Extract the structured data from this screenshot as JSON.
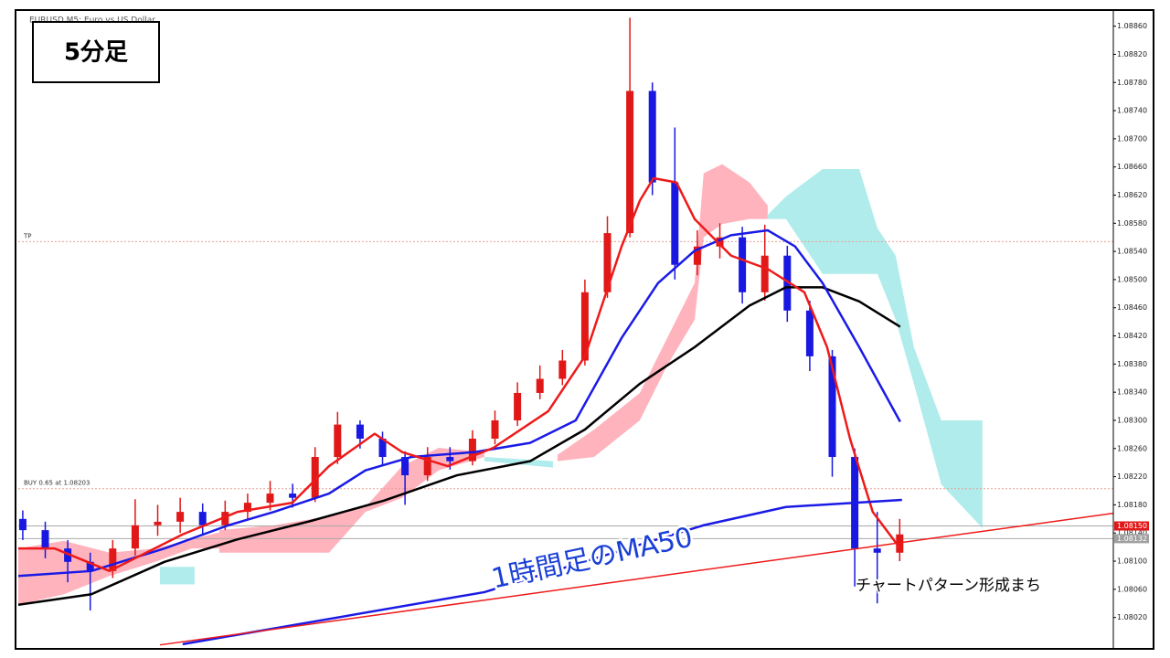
{
  "chart_data": {
    "type": "candlestick",
    "title": "EURUSD,M5:  Euro vs US Dollar",
    "label_box": "5分足",
    "annotations": [
      "1時間足のMA50",
      "チャートパターン形成まち"
    ],
    "xlim": [
      -0.2,
      48.5
    ],
    "ylim": [
      1.07978,
      1.08879
    ],
    "yticks": [
      {
        "value": 1.0802,
        "label": "1.08020"
      },
      {
        "value": 1.0806,
        "label": "1.08060"
      },
      {
        "value": 1.081,
        "label": "1.08100"
      },
      {
        "value": 1.0814,
        "label": "1.08140"
      },
      {
        "value": 1.0818,
        "label": "1.08180"
      },
      {
        "value": 1.0822,
        "label": "1.08220"
      },
      {
        "value": 1.0826,
        "label": "1.08260"
      },
      {
        "value": 1.083,
        "label": "1.08300"
      },
      {
        "value": 1.0834,
        "label": "1.08340"
      },
      {
        "value": 1.0838,
        "label": "1.08380"
      },
      {
        "value": 1.0842,
        "label": "1.08420"
      },
      {
        "value": 1.0846,
        "label": "1.08460"
      },
      {
        "value": 1.085,
        "label": "1.08500"
      },
      {
        "value": 1.0854,
        "label": "1.08540"
      },
      {
        "value": 1.0858,
        "label": "1.08580"
      },
      {
        "value": 1.0862,
        "label": "1.08620"
      },
      {
        "value": 1.0866,
        "label": "1.08660"
      },
      {
        "value": 1.087,
        "label": "1.08700"
      },
      {
        "value": 1.0874,
        "label": "1.08740"
      },
      {
        "value": 1.0878,
        "label": "1.08780"
      },
      {
        "value": 1.0882,
        "label": "1.08820"
      },
      {
        "value": 1.0886,
        "label": "1.08860"
      }
    ],
    "up_color": "#e01818",
    "down_color": "#1818e0",
    "open": [
      1.0816,
      1.08144,
      1.08118,
      1.08099,
      1.08086,
      1.08118,
      1.08151,
      1.08156,
      1.0817,
      1.08151,
      1.0817,
      1.08183,
      1.08196,
      1.0819,
      1.08248,
      1.08294,
      1.08274,
      1.08248,
      1.08222,
      1.08248,
      1.08242,
      1.08274,
      1.083,
      1.08339,
      1.08359,
      1.08385,
      1.08482,
      1.08566,
      1.08768,
      1.08638,
      1.08521,
      1.08547,
      1.0856,
      1.08482,
      1.08534,
      1.08456,
      1.08391,
      1.08248,
      1.08118,
      1.08112
    ],
    "high": [
      1.08172,
      1.08156,
      1.0813,
      1.08112,
      1.0813,
      1.08188,
      1.0818,
      1.0819,
      1.08182,
      1.08186,
      1.08196,
      1.08214,
      1.0821,
      1.08262,
      1.08312,
      1.083,
      1.08284,
      1.08256,
      1.08262,
      1.08262,
      1.08286,
      1.08314,
      1.08354,
      1.08378,
      1.084,
      1.085,
      1.0859,
      1.08872,
      1.0878,
      1.08716,
      1.0857,
      1.0858,
      1.08575,
      1.08578,
      1.08548,
      1.0847,
      1.084,
      1.0826,
      1.0817,
      1.0816
    ],
    "low": [
      1.0813,
      1.08104,
      1.0807,
      1.0803,
      1.08076,
      1.08108,
      1.08136,
      1.0814,
      1.08136,
      1.08144,
      1.0816,
      1.08172,
      1.08176,
      1.08184,
      1.08238,
      1.0826,
      1.08236,
      1.0818,
      1.08214,
      1.0823,
      1.08236,
      1.08266,
      1.08292,
      1.0833,
      1.0835,
      1.08378,
      1.08474,
      1.0856,
      1.0862,
      1.085,
      1.08506,
      1.0853,
      1.08466,
      1.0847,
      1.0844,
      1.0837,
      1.0822,
      1.08064,
      1.0804,
      1.081
    ],
    "close": [
      1.08144,
      1.08118,
      1.08099,
      1.08086,
      1.08118,
      1.08151,
      1.08156,
      1.0817,
      1.08151,
      1.0817,
      1.08183,
      1.08196,
      1.0819,
      1.08248,
      1.08294,
      1.08274,
      1.08248,
      1.08222,
      1.08248,
      1.08242,
      1.08274,
      1.083,
      1.08339,
      1.08359,
      1.08385,
      1.08482,
      1.08566,
      1.08768,
      1.08638,
      1.08521,
      1.08547,
      1.0856,
      1.08482,
      1.08534,
      1.08456,
      1.08391,
      1.08248,
      1.08118,
      1.08112,
      1.08138
    ],
    "clouds": [
      {
        "color": "#ffb3bd",
        "x": [
          -0.2,
          1.83,
          3.86,
          5.89,
          7.52,
          9.15
        ],
        "upper": [
          1.08118,
          1.08129,
          1.08112,
          1.08118,
          1.08131,
          1.08144
        ],
        "lower": [
          1.08038,
          1.08053,
          1.08079,
          1.08099,
          1.08118,
          1.08118
        ]
      },
      {
        "color": "#ffb3bd",
        "x": [
          8.74,
          11.18,
          13.62,
          15.24,
          16.87,
          18.5,
          20.53
        ],
        "upper": [
          1.08144,
          1.08151,
          1.08164,
          1.08177,
          1.08235,
          1.08261,
          1.08255
        ],
        "lower": [
          1.08112,
          1.08112,
          1.08112,
          1.0817,
          1.0819,
          1.08229,
          1.08248
        ]
      },
      {
        "color": "#b0ecec",
        "x": [
          6.1,
          7.64
        ],
        "upper": [
          1.08092,
          1.08092
        ],
        "lower": [
          1.08067,
          1.08067
        ]
      },
      {
        "color": "#b0ecec",
        "x": [
          20.53,
          23.58
        ],
        "upper": [
          1.08248,
          1.08242
        ],
        "lower": [
          1.08242,
          1.08233
        ]
      },
      {
        "color": "#ffb3bd",
        "x": [
          23.78,
          25.41,
          27.44,
          28.66,
          29.88,
          30.28,
          31.1,
          32.32,
          33.13
        ],
        "upper": [
          1.08251,
          1.08287,
          1.08339,
          1.08417,
          1.08495,
          1.08651,
          1.08664,
          1.08638,
          1.08605
        ],
        "lower": [
          1.08242,
          1.08248,
          1.083,
          1.08378,
          1.08443,
          1.0856,
          1.08579,
          1.08586,
          1.08586
        ]
      },
      {
        "color": "#b0ecec",
        "x": [
          33.13,
          33.94,
          35.57,
          37.2,
          38.01,
          38.82,
          39.63,
          40.85,
          42.68
        ],
        "upper": [
          1.08592,
          1.08618,
          1.08657,
          1.08657,
          1.08573,
          1.08534,
          1.08404,
          1.083,
          1.083
        ],
        "lower": [
          1.08586,
          1.08586,
          1.08508,
          1.08508,
          1.08508,
          1.08443,
          1.08352,
          1.08209,
          1.08147
        ]
      }
    ],
    "price_lines": [
      {
        "value": 1.08554,
        "label": "TP",
        "color": "#e8a090"
      },
      {
        "value": 1.08203,
        "label": "BUY 0.65 at 1.08203",
        "color": "#e8a090"
      }
    ],
    "price_tags": [
      {
        "value": 1.0815,
        "label": "1.08150",
        "color": "#e01818"
      },
      {
        "value": 1.08132,
        "label": "1.08132",
        "color": "#a0a0a0"
      }
    ],
    "lines": [
      {
        "color": "#000000",
        "width": 2.5,
        "x": [
          -0.2,
          3.05,
          6.3,
          9.55,
          12.8,
          16.06,
          19.31,
          22.56,
          25.0,
          27.44,
          29.88,
          32.32,
          33.94,
          35.57,
          37.2,
          39.02
        ],
        "values": [
          1.08038,
          1.08053,
          1.08099,
          1.08131,
          1.08157,
          1.08186,
          1.08222,
          1.08242,
          1.08287,
          1.08352,
          1.08404,
          1.08463,
          1.08489,
          1.08489,
          1.08469,
          1.08433
        ]
      },
      {
        "color": "#1a1ae6",
        "width": 2.5,
        "x": [
          -0.2,
          3.05,
          6.3,
          9.15,
          11.18,
          13.62,
          15.24,
          17.28,
          20.12,
          22.56,
          24.59,
          26.63,
          28.25,
          29.88,
          31.5,
          33.13,
          34.35,
          35.57,
          37.2,
          39.02
        ],
        "values": [
          1.08079,
          1.08086,
          1.08118,
          1.08151,
          1.0817,
          1.08196,
          1.08229,
          1.08248,
          1.08255,
          1.08268,
          1.083,
          1.08417,
          1.08495,
          1.08541,
          1.08563,
          1.0857,
          1.08547,
          1.08495,
          1.08404,
          1.08298
        ]
      },
      {
        "color": "#ee1a1a",
        "width": 2.5,
        "x": [
          -0.2,
          1.42,
          3.86,
          7.11,
          9.55,
          11.99,
          13.62,
          15.65,
          16.87,
          18.9,
          20.93,
          23.37,
          25.0,
          26.63,
          27.44,
          28.05,
          29.07,
          29.88,
          31.5,
          33.13,
          34.76,
          35.77,
          36.79,
          37.8,
          39.02
        ],
        "values": [
          1.08118,
          1.08118,
          1.08086,
          1.08138,
          1.0817,
          1.08183,
          1.08235,
          1.08281,
          1.08255,
          1.08235,
          1.08261,
          1.08313,
          1.08391,
          1.08547,
          1.08612,
          1.08644,
          1.08638,
          1.08586,
          1.08534,
          1.08515,
          1.08482,
          1.08404,
          1.08274,
          1.0817,
          1.08118
        ]
      },
      {
        "color": "#1a1ae6",
        "width": 2.5,
        "x": [
          7.11,
          20.53,
          30.28,
          33.94,
          39.1
        ],
        "values": [
          1.07982,
          1.08056,
          1.08151,
          1.08177,
          1.08187
        ]
      },
      {
        "color": "#ee1a1a",
        "width": 1.5,
        "x": [
          6.1,
          48.5
        ],
        "values": [
          1.07981,
          1.08168
        ]
      }
    ]
  }
}
